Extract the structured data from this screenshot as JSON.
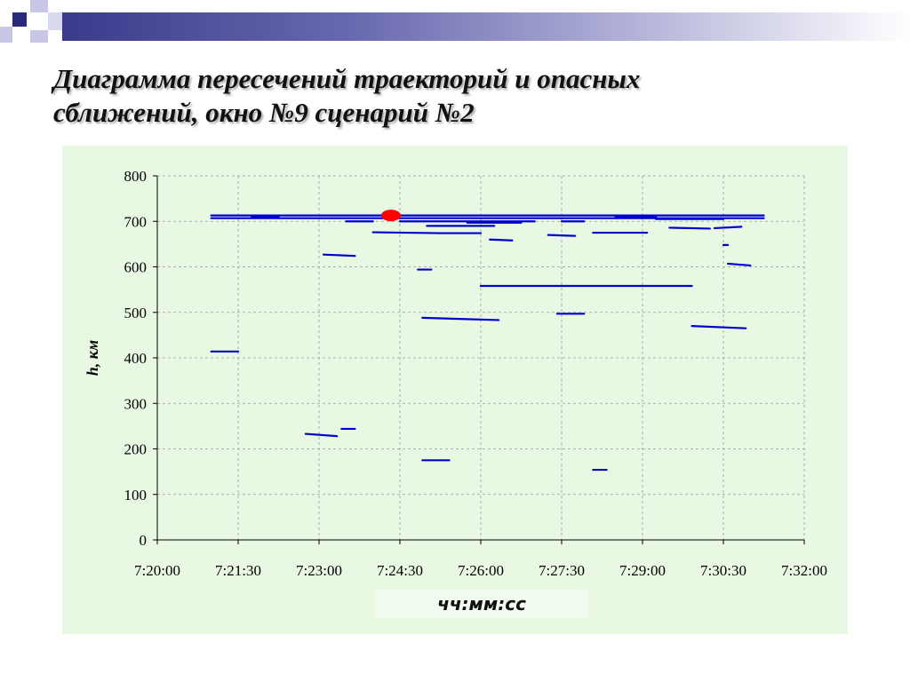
{
  "slide": {
    "title_line1": "Диаграмма пересечений траекторий и опасных",
    "title_line2": "сближений, окно №9 сценарий №2"
  },
  "colors": {
    "series": "#0000cc",
    "marker": "#ff0000",
    "plot_bg": "#e8f8e3",
    "grid": "#9a9a9a"
  },
  "chart_data": {
    "type": "scatter",
    "title": "",
    "xlabel": "чч:мм:сс",
    "ylabel": "h, км",
    "x_ticks": [
      "7:20:00",
      "7:21:30",
      "7:23:00",
      "7:24:30",
      "7:26:00",
      "7:27:30",
      "7:29:00",
      "7:30:30",
      "7:32:00"
    ],
    "xlim": [
      "7:20:00",
      "7:32:00"
    ],
    "y_ticks": [
      0,
      100,
      200,
      300,
      400,
      500,
      600,
      700,
      800
    ],
    "ylim": [
      0,
      800
    ],
    "grid": "dashed",
    "legend": "none",
    "segments": [
      {
        "x": [
          "7:21:00",
          "7:31:15"
        ],
        "y": [
          713,
          713
        ]
      },
      {
        "x": [
          "7:21:00",
          "7:31:15"
        ],
        "y": [
          707,
          707
        ]
      },
      {
        "x": [
          "7:21:45",
          "7:22:15"
        ],
        "y": [
          710,
          710
        ]
      },
      {
        "x": [
          "7:23:30",
          "7:24:00"
        ],
        "y": [
          700,
          700
        ]
      },
      {
        "x": [
          "7:24:00",
          "7:25:15"
        ],
        "y": [
          676,
          674
        ]
      },
      {
        "x": [
          "7:25:15",
          "7:26:00"
        ],
        "y": [
          674,
          674
        ]
      },
      {
        "x": [
          "7:24:30",
          "7:26:00"
        ],
        "y": [
          700,
          700
        ]
      },
      {
        "x": [
          "7:25:00",
          "7:26:15"
        ],
        "y": [
          690,
          690
        ]
      },
      {
        "x": [
          "7:25:45",
          "7:26:45"
        ],
        "y": [
          697,
          697
        ]
      },
      {
        "x": [
          "7:26:00",
          "7:27:00"
        ],
        "y": [
          700,
          700
        ]
      },
      {
        "x": [
          "7:26:10",
          "7:26:35"
        ],
        "y": [
          660,
          658
        ]
      },
      {
        "x": [
          "7:27:15",
          "7:27:45"
        ],
        "y": [
          670,
          668
        ]
      },
      {
        "x": [
          "7:27:30",
          "7:27:55"
        ],
        "y": [
          700,
          700
        ]
      },
      {
        "x": [
          "7:28:05",
          "7:29:05"
        ],
        "y": [
          675,
          675
        ]
      },
      {
        "x": [
          "7:28:30",
          "7:29:15"
        ],
        "y": [
          710,
          710
        ]
      },
      {
        "x": [
          "7:29:15",
          "7:30:30"
        ],
        "y": [
          705,
          705
        ]
      },
      {
        "x": [
          "7:29:30",
          "7:30:15"
        ],
        "y": [
          686,
          684
        ]
      },
      {
        "x": [
          "7:30:20",
          "7:30:50"
        ],
        "y": [
          685,
          688
        ]
      },
      {
        "x": [
          "7:30:30",
          "7:30:35"
        ],
        "y": [
          648,
          648
        ]
      },
      {
        "x": [
          "7:30:35",
          "7:31:00"
        ],
        "y": [
          607,
          603
        ]
      },
      {
        "x": [
          "7:23:05",
          "7:23:40"
        ],
        "y": [
          627,
          624
        ]
      },
      {
        "x": [
          "7:24:50",
          "7:25:05"
        ],
        "y": [
          594,
          594
        ]
      },
      {
        "x": [
          "7:26:00",
          "7:29:55"
        ],
        "y": [
          558,
          558
        ]
      },
      {
        "x": [
          "7:24:55",
          "7:26:20"
        ],
        "y": [
          488,
          483
        ]
      },
      {
        "x": [
          "7:27:25",
          "7:27:55"
        ],
        "y": [
          497,
          497
        ]
      },
      {
        "x": [
          "7:29:55",
          "7:30:55"
        ],
        "y": [
          470,
          465
        ]
      },
      {
        "x": [
          "7:21:00",
          "7:21:30"
        ],
        "y": [
          414,
          414
        ]
      },
      {
        "x": [
          "7:22:45",
          "7:23:20"
        ],
        "y": [
          233,
          228
        ]
      },
      {
        "x": [
          "7:23:25",
          "7:23:40"
        ],
        "y": [
          244,
          244
        ]
      },
      {
        "x": [
          "7:24:55",
          "7:25:25"
        ],
        "y": [
          175,
          175
        ]
      },
      {
        "x": [
          "7:28:05",
          "7:28:20"
        ],
        "y": [
          154,
          154
        ]
      }
    ],
    "markers": [
      {
        "x": "7:24:20",
        "y": 713
      }
    ]
  }
}
